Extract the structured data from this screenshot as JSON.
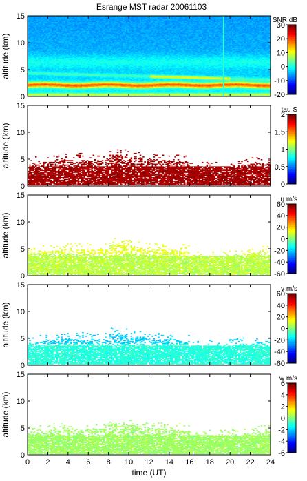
{
  "figure": {
    "title": "Esrange MST radar 20061103",
    "xlabel": "time (UT)",
    "ylabel": "altitude (km)"
  },
  "chart_data": [
    {
      "type": "heatmap",
      "title": "Esrange MST radar 20061103",
      "ylabel": "altitude (km)",
      "xlabel": "",
      "xlim": [
        0,
        24
      ],
      "ylim": [
        0,
        15
      ],
      "xticks": [
        0,
        2,
        4,
        6,
        8,
        10,
        12,
        14,
        16,
        18,
        20,
        22,
        24
      ],
      "yticks": [
        0,
        5,
        10,
        15
      ],
      "colorbar": {
        "label": "SNR dB",
        "min": -20,
        "max": 30,
        "ticks": [
          -20,
          -10,
          0,
          10,
          20,
          30
        ]
      }
    },
    {
      "type": "heatmap",
      "ylabel": "altitude (km)",
      "xlabel": "",
      "xlim": [
        0,
        24
      ],
      "ylim": [
        0,
        15
      ],
      "xticks": [
        0,
        2,
        4,
        6,
        8,
        10,
        12,
        14,
        16,
        18,
        20,
        22,
        24
      ],
      "yticks": [
        0,
        5,
        10,
        15
      ],
      "colorbar": {
        "label": "tau S",
        "min": 0,
        "max": 2,
        "ticks": [
          0,
          0.5,
          1,
          1.5,
          2
        ]
      }
    },
    {
      "type": "heatmap",
      "ylabel": "altitude (km)",
      "xlabel": "",
      "xlim": [
        0,
        24
      ],
      "ylim": [
        0,
        15
      ],
      "xticks": [
        0,
        2,
        4,
        6,
        8,
        10,
        12,
        14,
        16,
        18,
        20,
        22,
        24
      ],
      "yticks": [
        0,
        5,
        10,
        15
      ],
      "colorbar": {
        "label": "u m/s",
        "min": -60,
        "max": 60,
        "ticks": [
          -60,
          -40,
          -20,
          0,
          20,
          40,
          60
        ]
      }
    },
    {
      "type": "heatmap",
      "ylabel": "altitude (km)",
      "xlabel": "",
      "xlim": [
        0,
        24
      ],
      "ylim": [
        0,
        15
      ],
      "xticks": [
        0,
        2,
        4,
        6,
        8,
        10,
        12,
        14,
        16,
        18,
        20,
        22,
        24
      ],
      "yticks": [
        0,
        5,
        10,
        15
      ],
      "colorbar": {
        "label": "v m/s",
        "min": -60,
        "max": 60,
        "ticks": [
          -60,
          -40,
          -20,
          0,
          20,
          40,
          60
        ]
      }
    },
    {
      "type": "heatmap",
      "ylabel": "altitude (km)",
      "xlabel": "time (UT)",
      "xlim": [
        0,
        24
      ],
      "ylim": [
        0,
        15
      ],
      "xticks": [
        0,
        2,
        4,
        6,
        8,
        10,
        12,
        14,
        16,
        18,
        20,
        22,
        24
      ],
      "yticks": [
        0,
        5,
        10,
        15
      ],
      "colorbar": {
        "label": "w m/s",
        "min": -6,
        "max": 6,
        "ticks": [
          -6,
          -4,
          -2,
          0,
          2,
          4,
          6
        ]
      }
    }
  ]
}
